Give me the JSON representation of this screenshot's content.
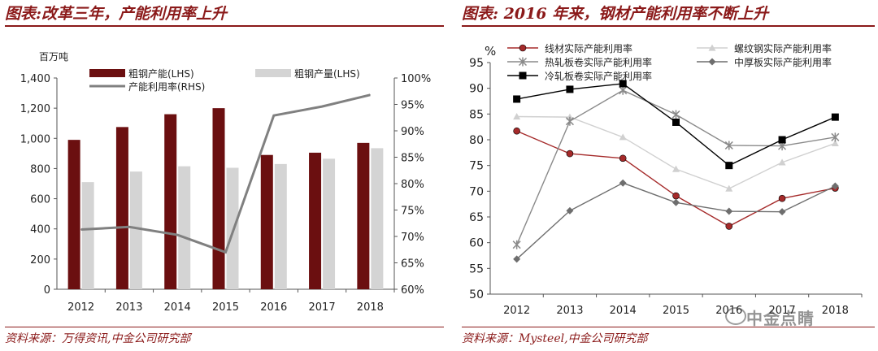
{
  "left": {
    "title": "图表:改革三年，产能利用率上升",
    "source": "资料来源：万得资讯,中金公司研究部"
  },
  "right": {
    "title": "图表: 2016 年来，钢材产能利用率不断上升",
    "source": "资料来源：Mysteel,中金公司研究部"
  },
  "watermark": "中金点睛",
  "colors": {
    "accent": "#8b1a1a",
    "bar_capacity": "#6b0f10",
    "bar_output": "#d4d4d4",
    "util_line": "#808080"
  },
  "chart_data": [
    {
      "type": "bar",
      "unit_label": "百万吨",
      "categories": [
        "2012",
        "2013",
        "2014",
        "2015",
        "2016",
        "2017",
        "2018"
      ],
      "series": [
        {
          "name": "粗钢产能(LHS)",
          "type": "bar",
          "axis": "left",
          "values": [
            990,
            1075,
            1160,
            1200,
            890,
            905,
            970
          ]
        },
        {
          "name": "粗钢产量(LHS)",
          "type": "bar",
          "axis": "left",
          "values": [
            710,
            780,
            815,
            805,
            830,
            865,
            935
          ]
        },
        {
          "name": "产能利用率(RHS)",
          "type": "line",
          "axis": "right",
          "values": [
            71.3,
            71.8,
            70.3,
            67.0,
            92.9,
            94.6,
            96.8
          ]
        }
      ],
      "ylim": [
        0,
        1400
      ],
      "y_ticks": [
        "0",
        "200",
        "400",
        "600",
        "800",
        "1,000",
        "1,200",
        "1,400"
      ],
      "y2lim": [
        60,
        100
      ],
      "y2_ticks": [
        "60%",
        "65%",
        "70%",
        "75%",
        "80%",
        "85%",
        "90%",
        "95%",
        "100%"
      ],
      "legend_position": "top"
    },
    {
      "type": "line",
      "unit_label": "%",
      "x": [
        "2012",
        "2013",
        "2014",
        "2015",
        "2016",
        "2017",
        "2018"
      ],
      "series": [
        {
          "name": "线材实际产能利用率",
          "marker": "circle",
          "color": "#a52a2a",
          "values": [
            81.7,
            77.3,
            76.4,
            69.1,
            63.2,
            68.6,
            70.6
          ]
        },
        {
          "name": "螺纹钢实际产能利用率",
          "marker": "triangle",
          "color": "#d0d0d0",
          "values": [
            84.5,
            84.4,
            80.5,
            74.3,
            70.5,
            75.6,
            79.3
          ]
        },
        {
          "name": "热轧板卷实际产能利用率",
          "marker": "star",
          "color": "#8a8a8a",
          "values": [
            59.6,
            83.6,
            89.6,
            84.9,
            78.9,
            78.8,
            80.5
          ]
        },
        {
          "name": "中厚板实际产能利用率",
          "marker": "diamond",
          "color": "#6e6e6e",
          "values": [
            56.8,
            66.2,
            71.6,
            67.8,
            66.1,
            66.0,
            71.0
          ]
        },
        {
          "name": "冷轧板卷实际产能利用率",
          "marker": "square",
          "color": "#000000",
          "values": [
            87.9,
            89.8,
            90.9,
            83.4,
            75.0,
            80.0,
            84.4
          ]
        }
      ],
      "ylim": [
        50,
        95
      ],
      "y_ticks": [
        "50",
        "55",
        "60",
        "65",
        "70",
        "75",
        "80",
        "85",
        "90",
        "95"
      ],
      "legend_position": "top"
    }
  ]
}
